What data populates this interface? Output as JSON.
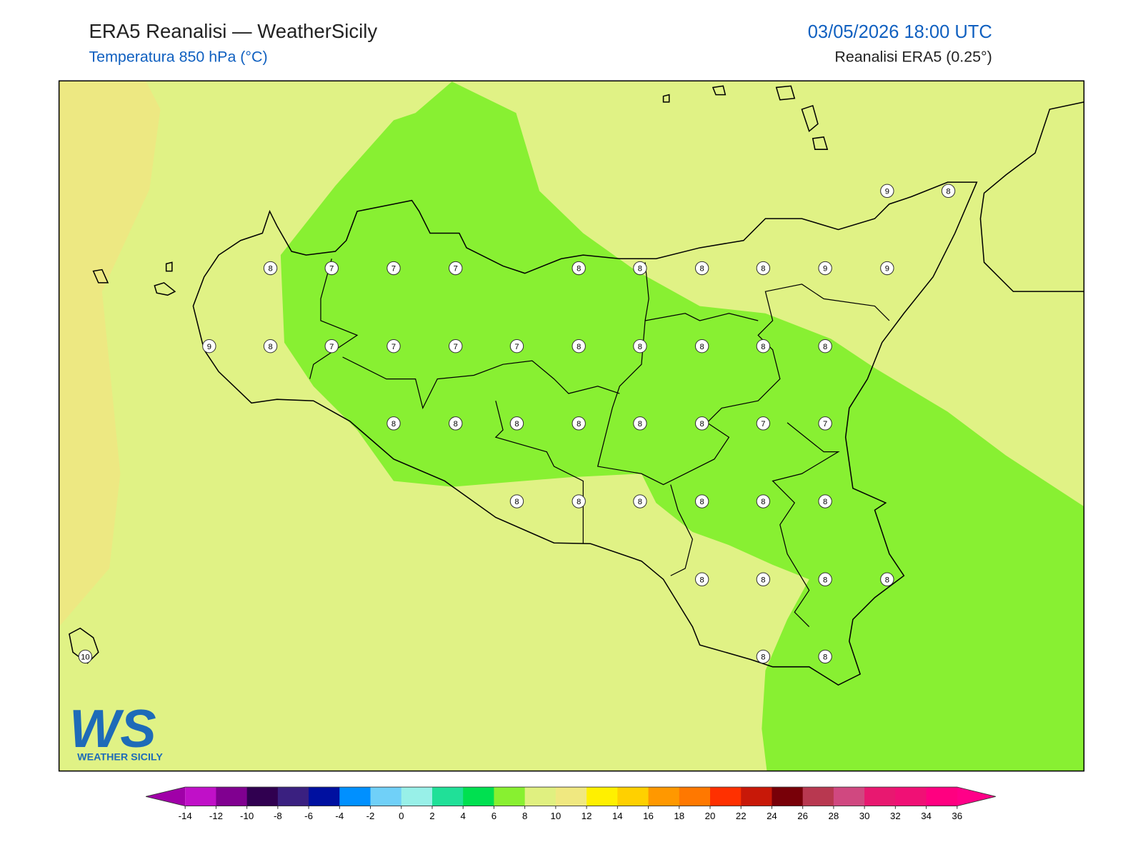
{
  "header": {
    "title": "ERA5 Reanalisi — WeatherSicily",
    "subtitle": "Temperatura 850 hPa (°C)",
    "datetime": "03/05/2026 18:00 UTC",
    "source": "Reanalisi ERA5 (0.25°)"
  },
  "map": {
    "stations": [
      9,
      8,
      8,
      7,
      7,
      7,
      8,
      8,
      8,
      8,
      9,
      9,
      9,
      8,
      7,
      7,
      7,
      7,
      8,
      8,
      8,
      8,
      8,
      8,
      8,
      8,
      8,
      8,
      8,
      7,
      7,
      8,
      8,
      8,
      8,
      8,
      8,
      8,
      8,
      8,
      8,
      10,
      8,
      8
    ]
  },
  "logo": {
    "mark": "WS",
    "name": "WEATHER SICILY"
  },
  "colorbar": {
    "ticks": [
      -14,
      -12,
      -10,
      -8,
      -6,
      -4,
      -2,
      0,
      2,
      4,
      6,
      8,
      10,
      12,
      14,
      16,
      18,
      20,
      22,
      24,
      26,
      28,
      30,
      32,
      34,
      36
    ],
    "colors": [
      "#c010c8",
      "#800090",
      "#300050",
      "#3a2080",
      "#0010a0",
      "#0090ff",
      "#70d0f8",
      "#98f0e8",
      "#20e098",
      "#00e050",
      "#88f030",
      "#e0f080",
      "#f0e880",
      "#fff000",
      "#ffd000",
      "#ff9800",
      "#ff7800",
      "#ff3000",
      "#c81808",
      "#780008",
      "#b83850",
      "#d04880",
      "#e81870",
      "#f01075",
      "#ff0080"
    ],
    "under_color": "#a000a8",
    "over_color": "#ff0088"
  }
}
